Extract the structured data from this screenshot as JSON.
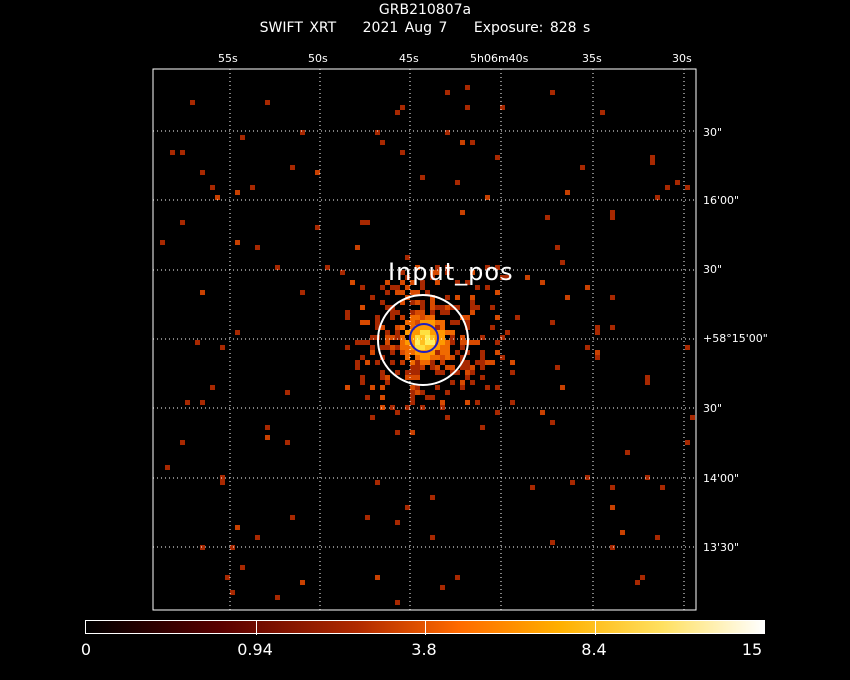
{
  "header": {
    "target": "GRB210807a",
    "instrument": "SWIFT XRT",
    "date": "2021 Aug  7",
    "exposure": "Exposure: 828 s"
  },
  "image": {
    "source_label": "Input_pos",
    "ra_ticks": [
      "55s",
      "50s",
      "45s",
      "5h06m40s",
      "35s",
      "30s"
    ],
    "dec_ticks": [
      "30\"",
      "16'00\"",
      "30\"",
      "+58°15'00\"",
      "30\"",
      "14'00\"",
      "13'30\""
    ],
    "colors": {
      "frame": "#ffffff",
      "grid": "#ffffff",
      "circle_outer": "#ffffff",
      "circle_inner": "#2020c0"
    }
  },
  "colorbar": {
    "ticks": [
      "0",
      "0.94",
      "3.8",
      "8.4",
      "15"
    ]
  }
}
